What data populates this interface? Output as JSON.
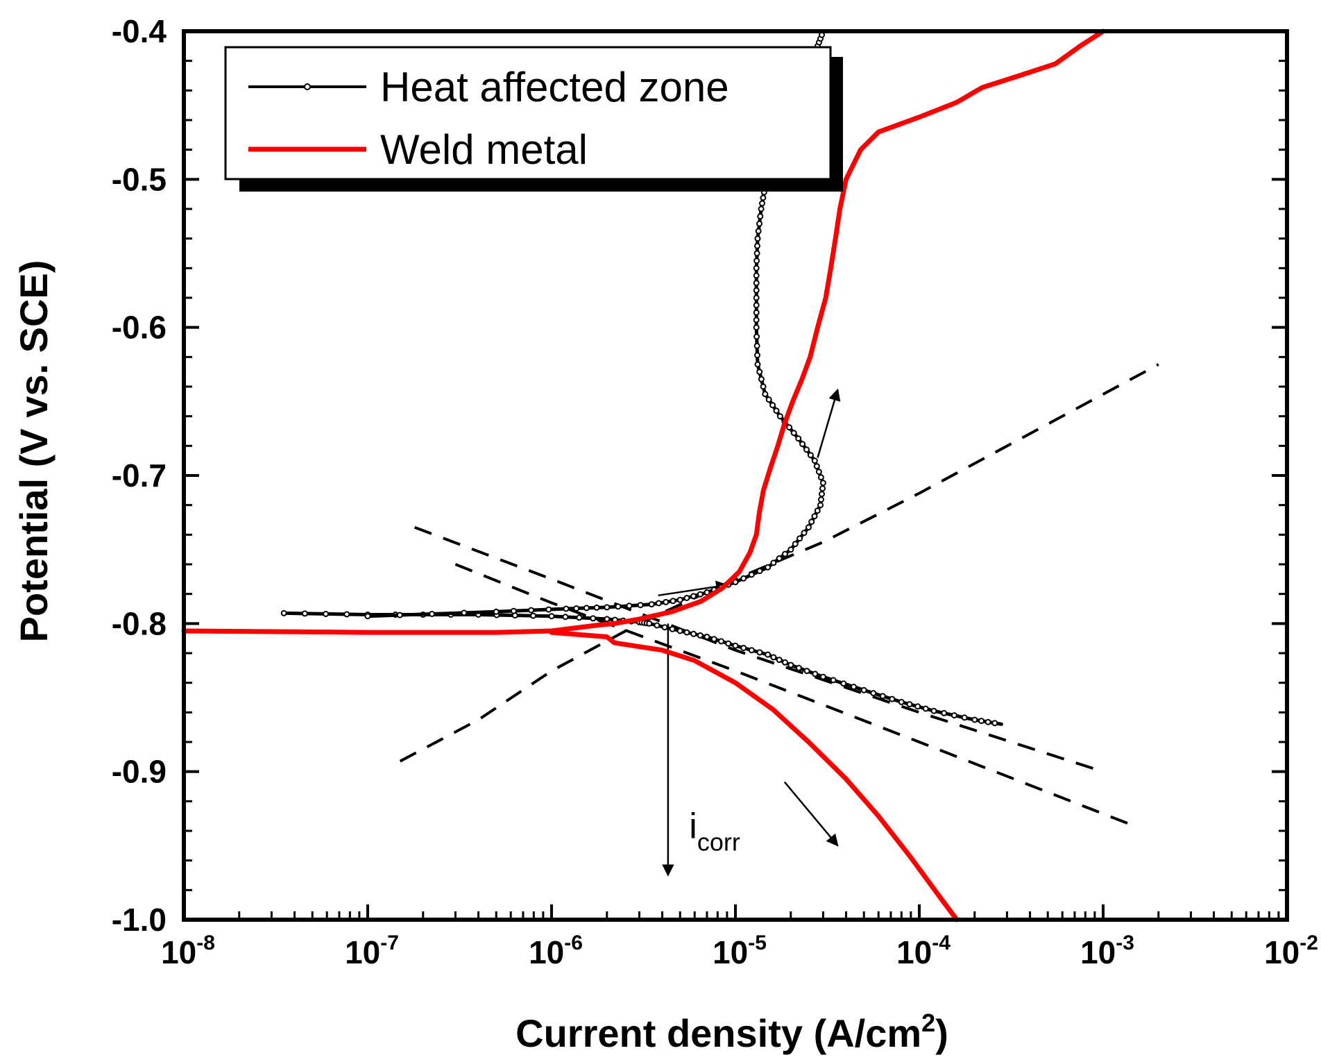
{
  "chart_data": {
    "type": "line",
    "x_scale": "log",
    "xlabel": "Current density (A/cm",
    "xlabel_sup": "2",
    "xlabel_close": ")",
    "ylabel": "Potential (V vs. SCE)",
    "xlim": [
      1e-08,
      0.01
    ],
    "ylim": [
      -1.0,
      -0.4
    ],
    "x_ticks": [
      {
        "base": "10",
        "exp": "-8",
        "value": 1e-08
      },
      {
        "base": "10",
        "exp": "-7",
        "value": 1e-07
      },
      {
        "base": "10",
        "exp": "-6",
        "value": 1e-06
      },
      {
        "base": "10",
        "exp": "-5",
        "value": 1e-05
      },
      {
        "base": "10",
        "exp": "-4",
        "value": 0.0001
      },
      {
        "base": "10",
        "exp": "-3",
        "value": 0.001
      },
      {
        "base": "10",
        "exp": "-2",
        "value": 0.01
      }
    ],
    "y_ticks": [
      {
        "label": "-0.4",
        "value": -0.4
      },
      {
        "label": "-0.5",
        "value": -0.5
      },
      {
        "label": "-0.6",
        "value": -0.6
      },
      {
        "label": "-0.7",
        "value": -0.7
      },
      {
        "label": "-0.8",
        "value": -0.8
      },
      {
        "label": "-0.9",
        "value": -0.9
      },
      {
        "label": "-1.0",
        "value": -1.0
      }
    ],
    "legend_position": "top-left",
    "series": [
      {
        "name": "Heat affected zone",
        "color": "#000000",
        "marker": "circle",
        "segments": [
          [
            [
              3.5e-08,
              -0.793
            ],
            [
              1e-07,
              -0.794
            ],
            [
              4e-07,
              -0.794
            ],
            [
              1e-06,
              -0.795
            ],
            [
              2e-06,
              -0.797
            ],
            [
              3e-06,
              -0.799
            ],
            [
              3.4e-06,
              -0.8
            ]
          ],
          [
            [
              1e-07,
              -0.795
            ],
            [
              5e-07,
              -0.792
            ],
            [
              1.2e-06,
              -0.79
            ],
            [
              2e-06,
              -0.789
            ],
            [
              3.5e-06,
              -0.787
            ],
            [
              5e-06,
              -0.784
            ],
            [
              7e-06,
              -0.779
            ],
            [
              1e-05,
              -0.772
            ],
            [
              1.5e-05,
              -0.762
            ],
            [
              2e-05,
              -0.75
            ],
            [
              2.5e-05,
              -0.735
            ],
            [
              2.9e-05,
              -0.72
            ],
            [
              3e-05,
              -0.705
            ],
            [
              2.7e-05,
              -0.69
            ],
            [
              2.2e-05,
              -0.675
            ],
            [
              1.75e-05,
              -0.66
            ],
            [
              1.45e-05,
              -0.645
            ],
            [
              1.32e-05,
              -0.625
            ],
            [
              1.3e-05,
              -0.6
            ],
            [
              1.3e-05,
              -0.58
            ],
            [
              1.3e-05,
              -0.56
            ],
            [
              1.32e-05,
              -0.54
            ],
            [
              1.38e-05,
              -0.52
            ],
            [
              1.45e-05,
              -0.505
            ],
            [
              1.7e-05,
              -0.49
            ],
            [
              2e-05,
              -0.47
            ],
            [
              2.3e-05,
              -0.45
            ],
            [
              2.6e-05,
              -0.43
            ],
            [
              2.8e-05,
              -0.41
            ],
            [
              3e-05,
              -0.4
            ]
          ],
          [
            [
              3.4e-06,
              -0.8
            ],
            [
              5e-06,
              -0.805
            ],
            [
              7e-06,
              -0.809
            ],
            [
              1e-05,
              -0.815
            ],
            [
              1.5e-05,
              -0.821
            ],
            [
              2e-05,
              -0.828
            ],
            [
              3e-05,
              -0.836
            ],
            [
              5e-05,
              -0.845
            ],
            [
              8e-05,
              -0.853
            ],
            [
              0.00012,
              -0.859
            ],
            [
              0.0002,
              -0.865
            ],
            [
              0.00028,
              -0.868
            ]
          ]
        ]
      },
      {
        "name": "Weld metal",
        "color": "#ff0000",
        "marker": "none",
        "segments": [
          [
            [
              1e-08,
              -0.805
            ],
            [
              1e-07,
              -0.806
            ],
            [
              5e-07,
              -0.806
            ],
            [
              1e-06,
              -0.805
            ],
            [
              1.8e-06,
              -0.801
            ],
            [
              2.2e-06,
              -0.8
            ]
          ],
          [
            [
              2.2e-06,
              -0.8
            ],
            [
              3e-06,
              -0.797
            ],
            [
              4.5e-06,
              -0.792
            ],
            [
              6.5e-06,
              -0.785
            ],
            [
              8.5e-06,
              -0.776
            ],
            [
              1.05e-05,
              -0.765
            ],
            [
              1.2e-05,
              -0.752
            ],
            [
              1.3e-05,
              -0.74
            ],
            [
              1.35e-05,
              -0.725
            ],
            [
              1.42e-05,
              -0.71
            ],
            [
              1.55e-05,
              -0.695
            ],
            [
              1.7e-05,
              -0.68
            ],
            [
              1.85e-05,
              -0.665
            ],
            [
              2.05e-05,
              -0.65
            ],
            [
              2.3e-05,
              -0.635
            ],
            [
              2.55e-05,
              -0.62
            ],
            [
              2.8e-05,
              -0.6
            ],
            [
              3.1e-05,
              -0.58
            ],
            [
              3.3e-05,
              -0.56
            ],
            [
              3.5e-05,
              -0.54
            ],
            [
              3.7e-05,
              -0.52
            ],
            [
              4e-05,
              -0.5
            ],
            [
              4.8e-05,
              -0.48
            ],
            [
              6e-05,
              -0.468
            ],
            [
              0.0001,
              -0.458
            ],
            [
              0.00016,
              -0.448
            ],
            [
              0.00022,
              -0.438
            ],
            [
              0.00035,
              -0.43
            ],
            [
              0.00055,
              -0.422
            ],
            [
              0.00075,
              -0.41
            ],
            [
              0.001,
              -0.4
            ]
          ],
          [
            [
              1e-06,
              -0.806
            ],
            [
              2e-06,
              -0.809
            ],
            [
              2.2e-06,
              -0.813
            ],
            [
              4e-06,
              -0.818
            ],
            [
              6e-06,
              -0.825
            ],
            [
              1e-05,
              -0.84
            ],
            [
              1.6e-05,
              -0.858
            ],
            [
              2.5e-05,
              -0.88
            ],
            [
              4e-05,
              -0.905
            ],
            [
              6e-05,
              -0.93
            ],
            [
              9e-05,
              -0.958
            ],
            [
              0.00013,
              -0.985
            ],
            [
              0.00016,
              -1.0
            ]
          ]
        ]
      }
    ],
    "tafel_lines": [
      [
        [
          1.5e-07,
          -0.893
        ],
        [
          4e-07,
          -0.865
        ],
        [
          1e-06,
          -0.832
        ],
        [
          3e-06,
          -0.8
        ],
        [
          1e-05,
          -0.77
        ],
        [
          3e-05,
          -0.745
        ],
        [
          0.0001,
          -0.712
        ],
        [
          0.002,
          -0.625
        ]
      ],
      [
        [
          1.8e-07,
          -0.735
        ],
        [
          1e-06,
          -0.77
        ],
        [
          3e-06,
          -0.793
        ],
        [
          1e-05,
          -0.818
        ],
        [
          0.0001,
          -0.86
        ],
        [
          0.001,
          -0.9
        ]
      ],
      [
        [
          3e-07,
          -0.76
        ],
        [
          1e-06,
          -0.786
        ],
        [
          3e-06,
          -0.808
        ],
        [
          1e-05,
          -0.832
        ],
        [
          0.0001,
          -0.88
        ],
        [
          0.0015,
          -0.937
        ]
      ]
    ],
    "annotations": [
      {
        "type": "arrow",
        "from": [
          4.3e-06,
          -0.8
        ],
        "to": [
          4.3e-06,
          -0.97
        ]
      },
      {
        "type": "arrow",
        "from": [
          3.8e-06,
          -0.781
        ],
        "to": [
          9e-06,
          -0.774
        ]
      },
      {
        "type": "arrow",
        "from": [
          2.8e-05,
          -0.688
        ],
        "to": [
          3.6e-05,
          -0.642
        ]
      },
      {
        "type": "arrow",
        "from": [
          1.85e-05,
          -0.907
        ],
        "to": [
          3.6e-05,
          -0.95
        ]
      },
      {
        "type": "text",
        "text": "i",
        "sub": "corr",
        "x": 5.6e-06,
        "y": -0.945
      }
    ]
  }
}
